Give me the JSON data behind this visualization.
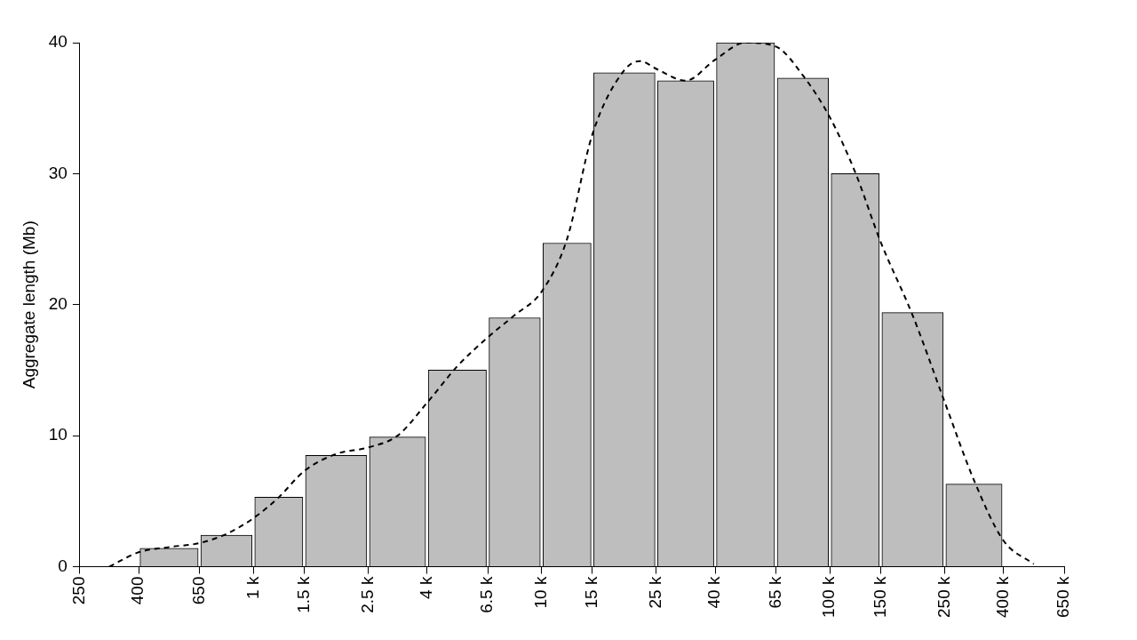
{
  "chart_data": {
    "type": "histogram",
    "ylabel": "Aggregate length (Mb)",
    "bins": [
      250,
      400,
      650,
      1000,
      1500,
      2500,
      4000,
      6500,
      10000,
      15000,
      25000,
      40000,
      65000,
      100000,
      150000,
      250000,
      400000,
      650000
    ],
    "values": [
      0,
      1.4,
      2.4,
      5.3,
      8.5,
      9.9,
      15.0,
      19.0,
      24.7,
      37.7,
      37.1,
      40.0,
      37.3,
      30.0,
      19.4,
      6.3,
      0
    ],
    "color": "#bebebe",
    "series": [
      {
        "type": "line",
        "color": "#000000",
        "line_style": "dashed",
        "marker": "none",
        "x": [
          316,
          400,
          510,
          650,
          806,
          1000,
          1225,
          1500,
          1936,
          2500,
          3162,
          4000,
          5099,
          6500,
          8062,
          10000,
          12247,
          15000,
          19365,
          22011,
          25000,
          31623,
          40000,
          50990,
          65000,
          80623,
          100000,
          122474,
          150000,
          193649,
          250000,
          316228,
          400000,
          509902
        ],
        "values": [
          0,
          1.1,
          1.5,
          1.8,
          2.5,
          3.7,
          5.3,
          7.3,
          8.6,
          9.1,
          10,
          12.5,
          15.3,
          17.5,
          19.2,
          21,
          25,
          33,
          37.9,
          38.6,
          38,
          37.1,
          38.7,
          40.0,
          39.7,
          37.5,
          34.3,
          30.1,
          24.8,
          19.2,
          12.6,
          6.6,
          2.0,
          0.2
        ]
      }
    ],
    "xlim": [
      250,
      650000
    ],
    "xticks": [
      {
        "value": 250,
        "label": "250"
      },
      {
        "value": 400,
        "label": "400"
      },
      {
        "value": 650,
        "label": "650"
      },
      {
        "value": 1000,
        "label": "1 k"
      },
      {
        "value": 1500,
        "label": "1.5 k"
      },
      {
        "value": 2500,
        "label": "2.5 k"
      },
      {
        "value": 4000,
        "label": "4 k"
      },
      {
        "value": 6500,
        "label": "6.5 k"
      },
      {
        "value": 10000,
        "label": "10 k"
      },
      {
        "value": 15000,
        "label": "15 k"
      },
      {
        "value": 25000,
        "label": "25 k"
      },
      {
        "value": 40000,
        "label": "40 k"
      },
      {
        "value": 65000,
        "label": "65 k"
      },
      {
        "value": 100000,
        "label": "100 k"
      },
      {
        "value": 150000,
        "label": "150 k"
      },
      {
        "value": 250000,
        "label": "250 k"
      },
      {
        "value": 400000,
        "label": "400 k"
      },
      {
        "value": 650000,
        "label": "650 k"
      }
    ],
    "ylim": [
      0,
      40
    ],
    "yticks": [
      0,
      10,
      20,
      30,
      40
    ],
    "log": "x",
    "grid": false,
    "legend": false
  }
}
